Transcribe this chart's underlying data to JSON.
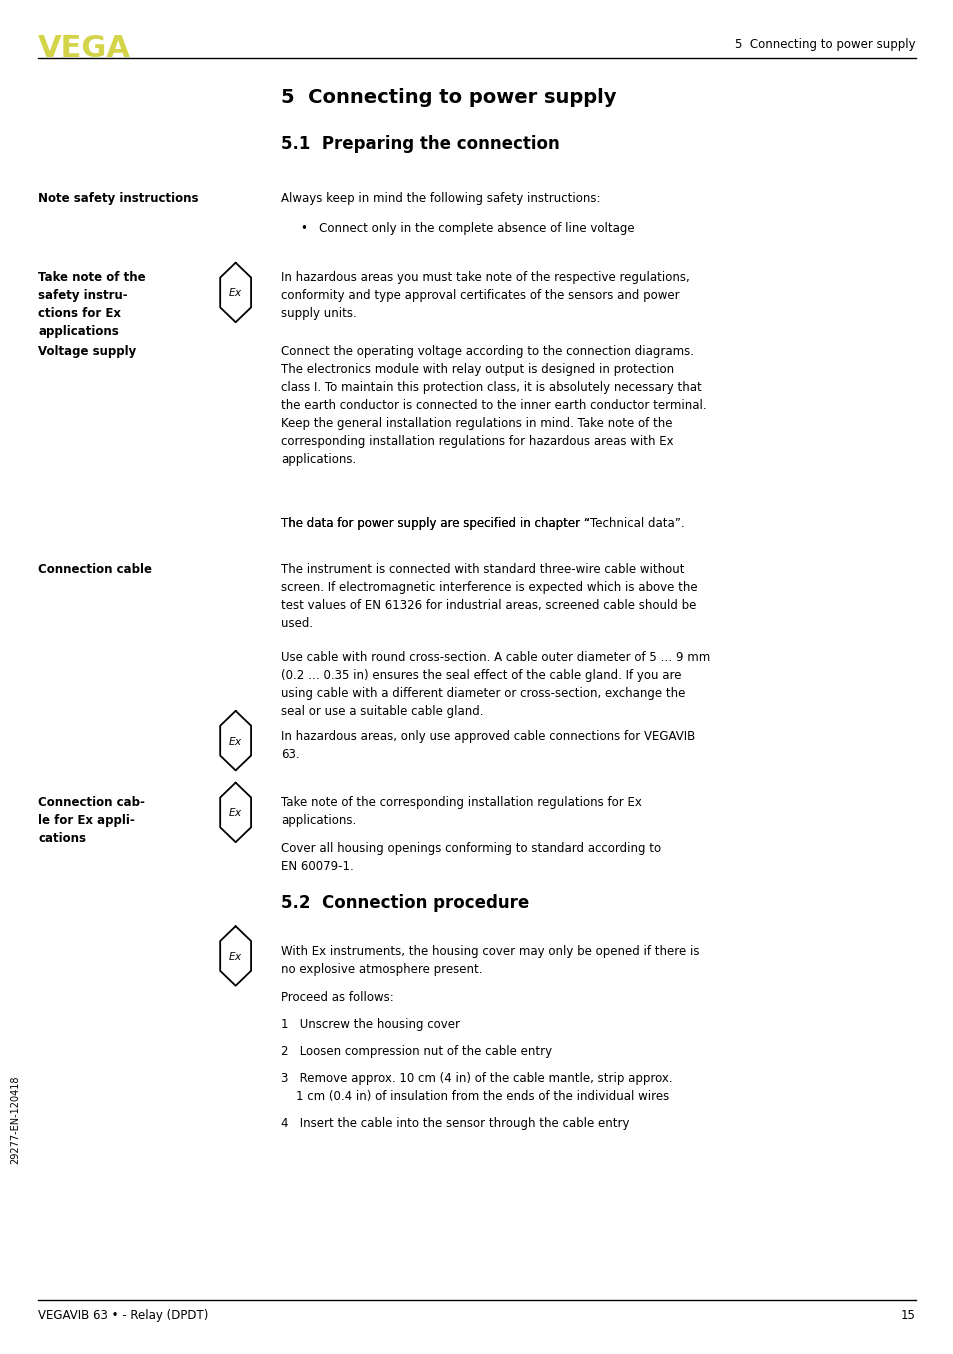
{
  "page_bg": "#ffffff",
  "header_logo_text": "VEGA",
  "header_logo_color": "#d4d44a",
  "header_right_text": "5  Connecting to power supply",
  "footer_left_text": "VEGAVIB 63 • - Relay (DPDT)",
  "footer_right_text": "15",
  "footer_side_text": "29277-EN-120418",
  "title_h1": "5  Connecting to power supply",
  "title_h2_1": "5.1  Preparing the connection",
  "title_h2_2": "5.2  Connection procedure"
}
